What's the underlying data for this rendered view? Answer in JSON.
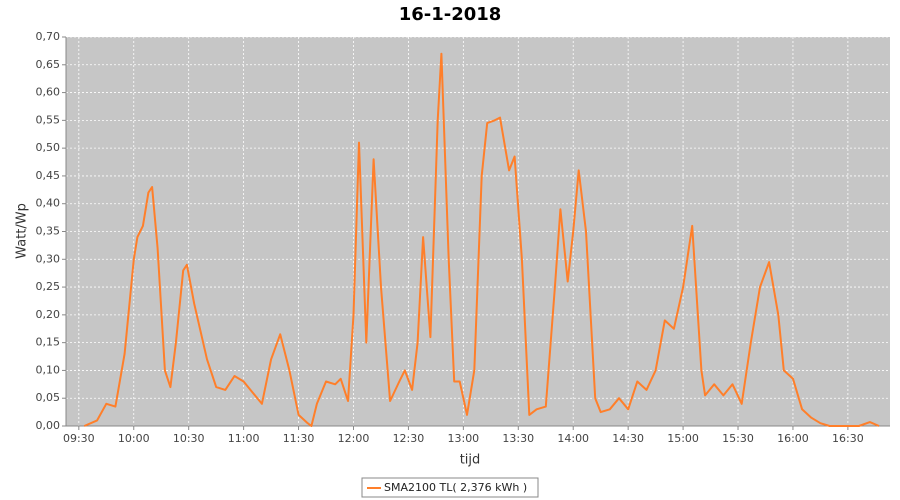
{
  "chart_data": {
    "type": "line",
    "title": "16-1-2018",
    "xlabel": "tijd",
    "ylabel": "Watt/Wp",
    "x": [
      "09:33",
      "09:40",
      "09:45",
      "09:50",
      "09:55",
      "10:00",
      "10:02",
      "10:05",
      "10:08",
      "10:10",
      "10:13",
      "10:17",
      "10:20",
      "10:23",
      "10:27",
      "10:29",
      "10:33",
      "10:40",
      "10:45",
      "10:50",
      "10:55",
      "11:00",
      "11:05",
      "11:10",
      "11:15",
      "11:20",
      "11:25",
      "11:30",
      "11:35",
      "11:37",
      "11:40",
      "11:45",
      "11:50",
      "11:53",
      "11:57",
      "12:00",
      "12:03",
      "12:07",
      "12:11",
      "12:15",
      "12:20",
      "12:25",
      "12:28",
      "12:32",
      "12:35",
      "12:38",
      "12:42",
      "12:46",
      "12:48",
      "12:52",
      "12:55",
      "12:58",
      "13:02",
      "13:06",
      "13:10",
      "13:13",
      "13:17",
      "13:20",
      "13:25",
      "13:28",
      "13:32",
      "13:36",
      "13:40",
      "13:45",
      "13:50",
      "13:53",
      "13:57",
      "14:00",
      "14:03",
      "14:07",
      "14:12",
      "14:15",
      "14:20",
      "14:25",
      "14:30",
      "14:35",
      "14:40",
      "14:45",
      "14:50",
      "14:55",
      "15:00",
      "15:05",
      "15:10",
      "15:12",
      "15:17",
      "15:22",
      "15:27",
      "15:32",
      "15:37",
      "15:42",
      "15:47",
      "15:52",
      "15:55",
      "16:00",
      "16:05",
      "16:10",
      "16:15",
      "16:20",
      "16:30",
      "16:36",
      "16:42",
      "16:47"
    ],
    "series": [
      {
        "name": "SMA2100 TL( 2,376 kWh )",
        "color": "#ff7f2a",
        "values": [
          0,
          0.01,
          0.04,
          0.035,
          0.13,
          0.3,
          0.34,
          0.36,
          0.42,
          0.43,
          0.32,
          0.1,
          0.07,
          0.15,
          0.28,
          0.29,
          0.22,
          0.12,
          0.07,
          0.065,
          0.09,
          0.08,
          0.06,
          0.04,
          0.12,
          0.165,
          0.1,
          0.02,
          0.005,
          0,
          0.04,
          0.08,
          0.075,
          0.085,
          0.045,
          0.2,
          0.51,
          0.15,
          0.48,
          0.25,
          0.045,
          0.08,
          0.1,
          0.065,
          0.15,
          0.34,
          0.16,
          0.55,
          0.67,
          0.3,
          0.08,
          0.08,
          0.02,
          0.1,
          0.45,
          0.545,
          0.55,
          0.555,
          0.46,
          0.485,
          0.3,
          0.02,
          0.03,
          0.035,
          0.25,
          0.39,
          0.26,
          0.35,
          0.46,
          0.35,
          0.05,
          0.025,
          0.03,
          0.05,
          0.03,
          0.08,
          0.065,
          0.1,
          0.19,
          0.175,
          0.25,
          0.36,
          0.1,
          0.055,
          0.075,
          0.055,
          0.075,
          0.04,
          0.15,
          0.25,
          0.295,
          0.2,
          0.1,
          0.085,
          0.03,
          0.015,
          0.005,
          0,
          0,
          0,
          0.007,
          0
        ]
      }
    ],
    "xlim": [
      "09:23",
      "16:53"
    ],
    "xticks": [
      "09:30",
      "10:00",
      "10:30",
      "11:00",
      "11:30",
      "12:00",
      "12:30",
      "13:00",
      "13:30",
      "14:00",
      "14:30",
      "15:00",
      "15:30",
      "16:00",
      "16:30"
    ],
    "ylim": [
      0,
      0.7
    ],
    "yticks": [
      {
        "value": 0,
        "label": "0,00"
      },
      {
        "value": 0.05,
        "label": "0,05"
      },
      {
        "value": 0.1,
        "label": "0,10"
      },
      {
        "value": 0.15,
        "label": "0,15"
      },
      {
        "value": 0.2,
        "label": "0,20"
      },
      {
        "value": 0.25,
        "label": "0,25"
      },
      {
        "value": 0.3,
        "label": "0,30"
      },
      {
        "value": 0.35,
        "label": "0,35"
      },
      {
        "value": 0.4,
        "label": "0,40"
      },
      {
        "value": 0.45,
        "label": "0,45"
      },
      {
        "value": 0.5,
        "label": "0,50"
      },
      {
        "value": 0.55,
        "label": "0,55"
      },
      {
        "value": 0.6,
        "label": "0,60"
      },
      {
        "value": 0.65,
        "label": "0,65"
      },
      {
        "value": 0.7,
        "label": "0,70"
      }
    ],
    "grid": true
  }
}
